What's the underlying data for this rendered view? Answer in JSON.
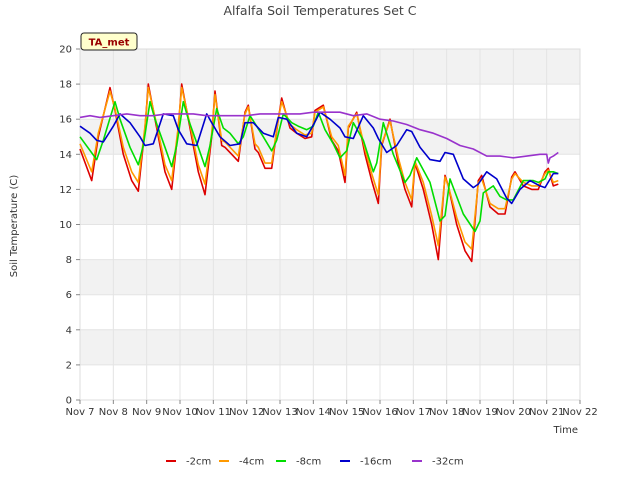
{
  "chart_data": {
    "type": "line",
    "title": "Alfalfa Soil Temperatures Set C",
    "xlabel": "Time",
    "ylabel": "Soil Temperature (C)",
    "badge": "TA_met",
    "xlim": [
      7,
      22
    ],
    "ylim": [
      0,
      20
    ],
    "x_ticks": [
      {
        "value": 7,
        "label": "Nov 7"
      },
      {
        "value": 8,
        "label": "Nov 8"
      },
      {
        "value": 9,
        "label": "Nov 9"
      },
      {
        "value": 10,
        "label": "Nov 10"
      },
      {
        "value": 11,
        "label": "Nov 11"
      },
      {
        "value": 12,
        "label": "Nov 12"
      },
      {
        "value": 13,
        "label": "Nov 13"
      },
      {
        "value": 14,
        "label": "Nov 14"
      },
      {
        "value": 15,
        "label": "Nov 15"
      },
      {
        "value": 16,
        "label": "Nov 16"
      },
      {
        "value": 17,
        "label": "Nov 17"
      },
      {
        "value": 18,
        "label": "Nov 18"
      },
      {
        "value": 19,
        "label": "Nov 19"
      },
      {
        "value": 20,
        "label": "Nov 20"
      },
      {
        "value": 21,
        "label": "Nov 21"
      },
      {
        "value": 22,
        "label": "Nov 22"
      }
    ],
    "y_ticks": [
      0,
      2,
      4,
      6,
      8,
      10,
      12,
      14,
      16,
      18,
      20
    ],
    "grid": true,
    "legend_position": "bottom",
    "series": [
      {
        "name": "-2cm",
        "color": "#dd0000",
        "x": [
          7.0,
          7.35,
          7.55,
          7.9,
          8.05,
          8.3,
          8.55,
          8.75,
          8.95,
          9.05,
          9.3,
          9.55,
          9.75,
          9.95,
          10.05,
          10.3,
          10.55,
          10.75,
          10.95,
          11.05,
          11.25,
          11.35,
          11.55,
          11.75,
          11.95,
          12.05,
          12.25,
          12.35,
          12.55,
          12.75,
          12.95,
          13.05,
          13.3,
          13.5,
          13.75,
          13.95,
          14.05,
          14.3,
          14.55,
          14.75,
          14.95,
          15.05,
          15.3,
          15.55,
          15.75,
          15.95,
          16.05,
          16.3,
          16.55,
          16.75,
          16.95,
          17.05,
          17.3,
          17.55,
          17.75,
          17.95,
          18.05,
          18.3,
          18.55,
          18.75,
          18.95,
          19.05,
          19.3,
          19.55,
          19.75,
          19.95,
          20.05,
          20.3,
          20.55,
          20.75,
          20.95,
          21.05,
          21.2,
          21.35
        ],
        "values": [
          14.3,
          12.5,
          15.0,
          17.8,
          16.5,
          14.0,
          12.5,
          11.9,
          15.5,
          18.0,
          15.5,
          13.0,
          12.0,
          15.5,
          18.0,
          15.5,
          13.0,
          11.7,
          15.0,
          17.6,
          14.5,
          14.4,
          14.0,
          13.6,
          16.4,
          16.8,
          14.3,
          14.1,
          13.2,
          13.2,
          16.0,
          17.2,
          15.5,
          15.2,
          14.9,
          15.0,
          16.5,
          16.8,
          14.8,
          14.2,
          12.4,
          15.5,
          16.4,
          14.0,
          12.5,
          11.2,
          14.5,
          16.0,
          13.5,
          12.0,
          11.0,
          13.5,
          12.0,
          10.0,
          8.0,
          12.8,
          12.2,
          10.0,
          8.5,
          7.9,
          12.5,
          12.8,
          11.0,
          10.6,
          10.6,
          12.7,
          13.0,
          12.2,
          12.0,
          12.0,
          13.0,
          13.2,
          12.2,
          12.3
        ]
      },
      {
        "name": "-4cm",
        "color": "#ff9900",
        "x": [
          7.0,
          7.35,
          7.55,
          7.9,
          8.05,
          8.3,
          8.55,
          8.75,
          8.95,
          9.05,
          9.3,
          9.55,
          9.75,
          9.95,
          10.05,
          10.3,
          10.55,
          10.75,
          10.95,
          11.05,
          11.25,
          11.35,
          11.55,
          11.75,
          11.95,
          12.05,
          12.25,
          12.35,
          12.55,
          12.75,
          12.95,
          13.05,
          13.3,
          13.5,
          13.75,
          13.95,
          14.05,
          14.3,
          14.55,
          14.75,
          14.95,
          15.05,
          15.3,
          15.55,
          15.75,
          15.95,
          16.05,
          16.3,
          16.55,
          16.75,
          16.95,
          17.05,
          17.3,
          17.55,
          17.75,
          17.95,
          18.05,
          18.3,
          18.55,
          18.75,
          18.95,
          19.05,
          19.3,
          19.55,
          19.75,
          19.95,
          20.05,
          20.3,
          20.55,
          20.75,
          20.95,
          21.05,
          21.2,
          21.35
        ],
        "values": [
          14.6,
          13.0,
          15.2,
          17.6,
          16.6,
          14.4,
          13.0,
          12.4,
          15.6,
          17.8,
          15.7,
          13.4,
          12.5,
          15.6,
          17.8,
          15.7,
          13.4,
          12.3,
          15.2,
          17.4,
          14.8,
          14.7,
          14.3,
          13.9,
          16.3,
          16.7,
          14.6,
          14.4,
          13.5,
          13.5,
          16.0,
          17.0,
          15.7,
          15.4,
          15.1,
          15.2,
          16.4,
          16.7,
          15.0,
          14.5,
          12.8,
          15.6,
          16.3,
          14.3,
          12.9,
          11.7,
          14.6,
          15.9,
          13.8,
          12.4,
          11.4,
          13.6,
          12.4,
          10.5,
          8.8,
          12.7,
          12.2,
          10.4,
          9.0,
          8.6,
          12.4,
          12.6,
          11.2,
          10.9,
          10.9,
          12.6,
          12.9,
          12.4,
          12.2,
          12.2,
          12.9,
          13.1,
          12.4,
          12.5
        ]
      },
      {
        "name": "-8cm",
        "color": "#00dd00",
        "x": [
          7.0,
          7.5,
          7.7,
          8.05,
          8.2,
          8.5,
          8.75,
          8.9,
          9.1,
          9.25,
          9.55,
          9.75,
          9.9,
          10.1,
          10.25,
          10.55,
          10.75,
          10.9,
          11.1,
          11.3,
          11.5,
          11.75,
          11.9,
          12.1,
          12.3,
          12.5,
          12.75,
          12.9,
          13.1,
          13.35,
          13.55,
          13.8,
          14.0,
          14.15,
          14.35,
          14.6,
          14.8,
          15.0,
          15.2,
          15.5,
          15.8,
          15.9,
          16.1,
          16.4,
          16.75,
          16.9,
          17.1,
          17.5,
          17.8,
          17.95,
          18.1,
          18.5,
          18.85,
          19.0,
          19.1,
          19.4,
          19.6,
          19.8,
          20.0,
          20.3,
          20.6,
          20.75,
          20.95,
          21.05,
          21.2,
          21.35
        ],
        "values": [
          15.0,
          13.7,
          14.8,
          17.0,
          16.0,
          14.4,
          13.4,
          14.5,
          17.0,
          16.0,
          14.4,
          13.3,
          14.5,
          17.0,
          16.0,
          14.4,
          13.3,
          14.5,
          16.6,
          15.5,
          15.2,
          14.6,
          15.0,
          16.2,
          15.6,
          15.0,
          14.2,
          14.8,
          16.3,
          15.8,
          15.6,
          15.4,
          15.6,
          16.4,
          15.4,
          14.6,
          13.8,
          14.2,
          15.8,
          14.8,
          13.0,
          13.5,
          15.8,
          14.0,
          12.4,
          12.8,
          13.8,
          12.4,
          10.2,
          10.5,
          12.6,
          10.6,
          9.6,
          10.2,
          11.8,
          12.2,
          11.6,
          11.4,
          11.4,
          12.5,
          12.5,
          12.4,
          12.6,
          13.0,
          13.0,
          12.9
        ]
      },
      {
        "name": "-16cm",
        "color": "#0000cc",
        "x": [
          7.0,
          7.3,
          7.5,
          7.7,
          8.0,
          8.2,
          8.5,
          8.8,
          8.95,
          9.2,
          9.5,
          9.8,
          9.95,
          10.2,
          10.5,
          10.8,
          10.95,
          11.2,
          11.5,
          11.8,
          11.95,
          12.2,
          12.5,
          12.8,
          12.95,
          13.2,
          13.5,
          13.8,
          13.95,
          14.2,
          14.5,
          14.8,
          14.95,
          15.2,
          15.5,
          15.8,
          15.95,
          16.2,
          16.5,
          16.8,
          16.95,
          17.2,
          17.5,
          17.8,
          17.95,
          18.2,
          18.5,
          18.8,
          18.95,
          19.2,
          19.5,
          19.8,
          19.95,
          20.2,
          20.5,
          20.8,
          20.95,
          21.2,
          21.35
        ],
        "values": [
          15.6,
          15.2,
          14.8,
          14.7,
          15.6,
          16.3,
          15.8,
          15.0,
          14.5,
          14.6,
          16.3,
          16.2,
          15.4,
          14.6,
          14.5,
          16.3,
          15.8,
          15.0,
          14.5,
          14.6,
          15.8,
          15.8,
          15.2,
          15.0,
          16.1,
          16.0,
          15.2,
          15.0,
          15.5,
          16.4,
          16.0,
          15.5,
          15.0,
          14.9,
          16.2,
          15.5,
          14.9,
          14.1,
          14.5,
          15.4,
          15.3,
          14.4,
          13.7,
          13.6,
          14.1,
          14.0,
          12.6,
          12.1,
          12.3,
          13.0,
          12.6,
          11.5,
          11.2,
          12.0,
          12.5,
          12.2,
          12.1,
          12.9,
          12.9
        ]
      },
      {
        "name": "-32cm",
        "color": "#9933cc",
        "x": [
          7.0,
          7.3,
          7.6,
          8.0,
          8.4,
          8.8,
          9.2,
          9.6,
          10.0,
          10.4,
          10.8,
          11.2,
          11.6,
          12.0,
          12.4,
          12.8,
          13.2,
          13.6,
          14.0,
          14.4,
          14.8,
          15.2,
          15.6,
          16.0,
          16.4,
          16.8,
          17.2,
          17.6,
          18.0,
          18.4,
          18.8,
          19.2,
          19.6,
          20.0,
          20.4,
          20.8,
          21.0,
          21.05,
          21.1,
          21.2,
          21.35
        ],
        "values": [
          16.1,
          16.2,
          16.1,
          16.2,
          16.3,
          16.2,
          16.2,
          16.3,
          16.3,
          16.3,
          16.2,
          16.2,
          16.2,
          16.2,
          16.3,
          16.3,
          16.3,
          16.3,
          16.4,
          16.4,
          16.4,
          16.2,
          16.3,
          16.0,
          15.9,
          15.7,
          15.4,
          15.2,
          14.9,
          14.5,
          14.3,
          13.9,
          13.9,
          13.8,
          13.9,
          14.0,
          14.0,
          13.5,
          13.8,
          13.9,
          14.1
        ]
      }
    ]
  }
}
